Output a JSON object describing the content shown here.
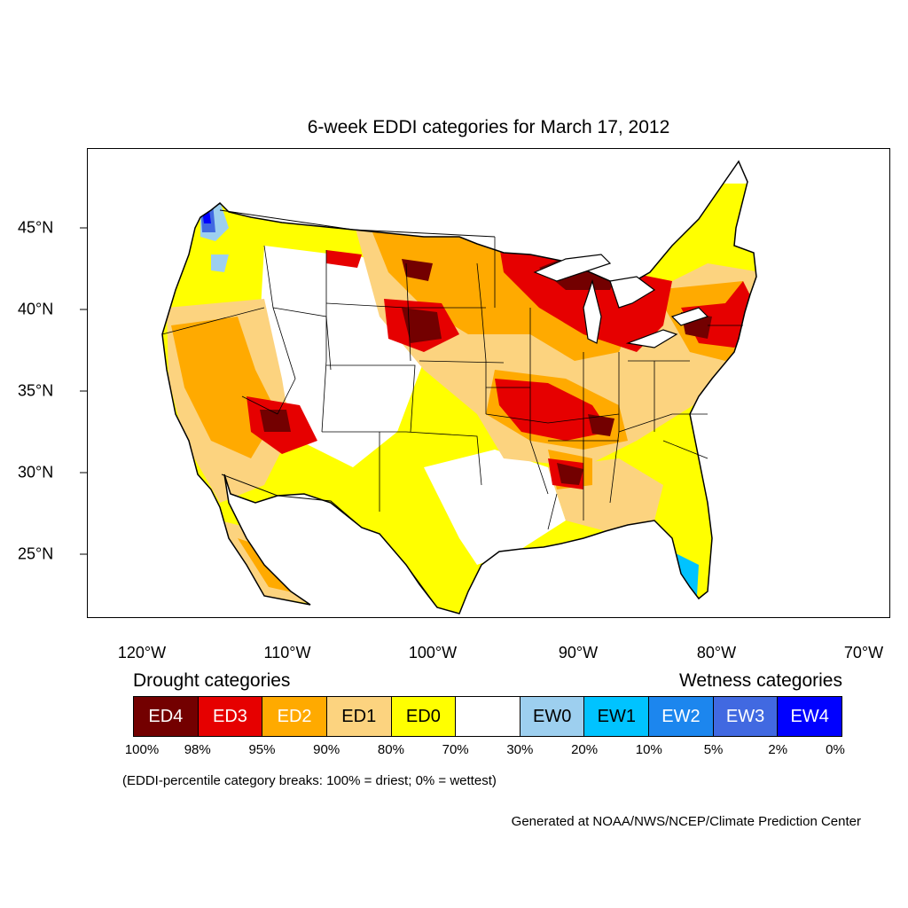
{
  "title": "6-week EDDI categories for March 17, 2012",
  "lon_labels": [
    "120°W",
    "110°W",
    "100°W",
    "90°W",
    "80°W",
    "70°W"
  ],
  "lat_labels": [
    "45°N",
    "40°N",
    "35°N",
    "30°N",
    "25°N"
  ],
  "legend": {
    "drought_heading": "Drought categories",
    "wetness_heading": "Wetness categories",
    "categories": [
      {
        "label": "ED4",
        "color": "#730000",
        "text_color": "#ffffff"
      },
      {
        "label": "ED3",
        "color": "#e60000",
        "text_color": "#ffffff"
      },
      {
        "label": "ED2",
        "color": "#ffaa00",
        "text_color": "#ffffff"
      },
      {
        "label": "ED1",
        "color": "#fcd37f",
        "text_color": "#000000"
      },
      {
        "label": "ED0",
        "color": "#ffff00",
        "text_color": "#000000"
      },
      {
        "label": "",
        "color": "#ffffff",
        "text_color": "#000000"
      },
      {
        "label": "EW0",
        "color": "#9dcfef",
        "text_color": "#000000"
      },
      {
        "label": "EW1",
        "color": "#00c3ff",
        "text_color": "#000000"
      },
      {
        "label": "EW2",
        "color": "#1c86ee",
        "text_color": "#ffffff"
      },
      {
        "label": "EW3",
        "color": "#4169e1",
        "text_color": "#ffffff"
      },
      {
        "label": "EW4",
        "color": "#0000ff",
        "text_color": "#ffffff"
      }
    ],
    "percentiles": [
      "100%",
      "98%",
      "95%",
      "90%",
      "80%",
      "70%",
      "30%",
      "20%",
      "10%",
      "5%",
      "2%",
      "0%"
    ]
  },
  "note": "(EDDI-percentile category breaks: 100% = driest; 0% = wettest)",
  "credit": "Generated at NOAA/NWS/NCEP/Climate Prediction Center"
}
